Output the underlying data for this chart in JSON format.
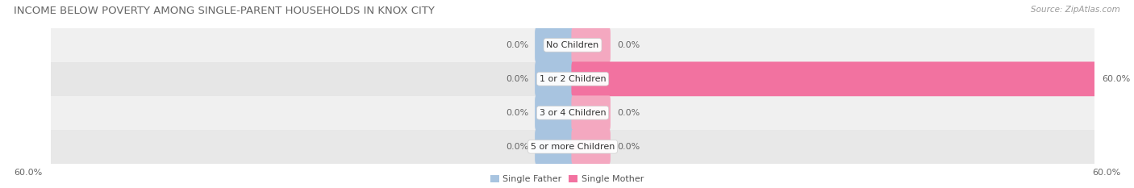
{
  "title": "INCOME BELOW POVERTY AMONG SINGLE-PARENT HOUSEHOLDS IN KNOX CITY",
  "source": "Source: ZipAtlas.com",
  "categories": [
    "No Children",
    "1 or 2 Children",
    "3 or 4 Children",
    "5 or more Children"
  ],
  "single_father": [
    0.0,
    0.0,
    0.0,
    0.0
  ],
  "single_mother": [
    0.0,
    60.0,
    0.0,
    0.0
  ],
  "max_val": 60.0,
  "father_color": "#a8c4e0",
  "mother_color": "#f272a0",
  "mother_stub_color": "#f4a8c0",
  "row_bg_colors": [
    "#f0f0f0",
    "#e6e6e6",
    "#f0f0f0",
    "#e8e8e8"
  ],
  "title_fontsize": 9.5,
  "source_fontsize": 7.5,
  "label_fontsize": 8,
  "category_fontsize": 8,
  "legend_fontsize": 8,
  "axis_label_fontsize": 8,
  "fig_width": 14.06,
  "fig_height": 2.33
}
